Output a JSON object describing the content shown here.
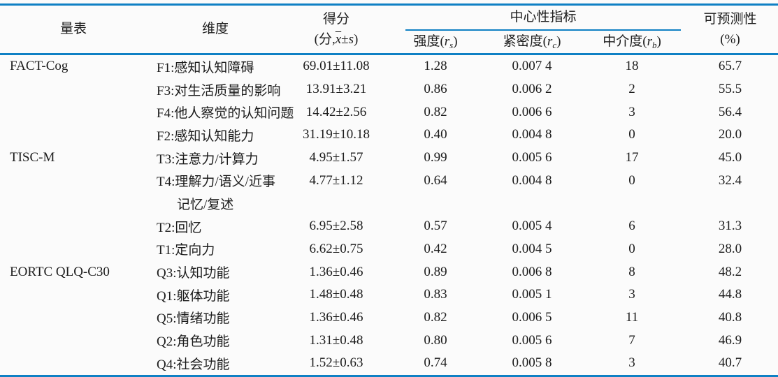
{
  "colors": {
    "accent": "#0f80c4",
    "ink": "#1c1c1c",
    "background": "#fbfbfb"
  },
  "table": {
    "header": {
      "scale": "量表",
      "dimension": "维度",
      "score": {
        "line1": "得分",
        "open": "(分,",
        "xbar": "x",
        "pm": "±",
        "s": "s",
        "close": ")"
      },
      "centrality": "中心性指标",
      "strength": {
        "label": "强度(",
        "sym": "r",
        "sub": "s",
        "close": ")"
      },
      "closeness": {
        "label": "紧密度(",
        "sym": "r",
        "sub": "c",
        "close": ")"
      },
      "betweenness": {
        "label": "中介度(",
        "sym": "r",
        "sub": "b",
        "close": ")"
      },
      "predictability": {
        "line1": "可预测性",
        "line2": "(%)"
      }
    },
    "rows": [
      {
        "scale": "FACT-Cog",
        "dim": "F1:感知认知障碍",
        "score": "69.01±11.08",
        "rs": "1.28",
        "rc": "0.007 4",
        "rb": "18",
        "pred": "65.7"
      },
      {
        "scale": "",
        "dim": "F3:对生活质量的影响",
        "score": "13.91±3.21",
        "rs": "0.86",
        "rc": "0.006 2",
        "rb": "2",
        "pred": "55.5"
      },
      {
        "scale": "",
        "dim": "F4:他人察觉的认知问题",
        "score": "14.42±2.56",
        "rs": "0.82",
        "rc": "0.006 6",
        "rb": "3",
        "pred": "56.4"
      },
      {
        "scale": "",
        "dim": "F2:感知认知能力",
        "score": "31.19±10.18",
        "rs": "0.40",
        "rc": "0.004 8",
        "rb": "0",
        "pred": "20.0"
      },
      {
        "scale": "TISC-M",
        "dim": "T3:注意力/计算力",
        "score": "4.95±1.57",
        "rs": "0.99",
        "rc": "0.005 6",
        "rb": "17",
        "pred": "45.0"
      },
      {
        "scale": "",
        "dim": "T4:理解力/语义/近事",
        "score": "4.77±1.12",
        "rs": "0.64",
        "rc": "0.004 8",
        "rb": "0",
        "pred": "32.4"
      },
      {
        "scale": "",
        "dim": "记忆/复述",
        "indent": true,
        "score": "",
        "rs": "",
        "rc": "",
        "rb": "",
        "pred": ""
      },
      {
        "scale": "",
        "dim": "T2:回忆",
        "score": "6.95±2.58",
        "rs": "0.57",
        "rc": "0.005 4",
        "rb": "6",
        "pred": "31.3"
      },
      {
        "scale": "",
        "dim": "T1:定向力",
        "score": "6.62±0.75",
        "rs": "0.42",
        "rc": "0.004 5",
        "rb": "0",
        "pred": "28.0"
      },
      {
        "scale": "EORTC QLQ-C30",
        "dim": "Q3:认知功能",
        "score": "1.36±0.46",
        "rs": "0.89",
        "rc": "0.006 8",
        "rb": "8",
        "pred": "48.2"
      },
      {
        "scale": "",
        "dim": "Q1:躯体功能",
        "score": "1.48±0.48",
        "rs": "0.83",
        "rc": "0.005 1",
        "rb": "3",
        "pred": "44.8"
      },
      {
        "scale": "",
        "dim": "Q5:情绪功能",
        "score": "1.36±0.46",
        "rs": "0.82",
        "rc": "0.006 5",
        "rb": "11",
        "pred": "40.8"
      },
      {
        "scale": "",
        "dim": "Q2:角色功能",
        "score": "1.31±0.48",
        "rs": "0.80",
        "rc": "0.005 6",
        "rb": "7",
        "pred": "46.9"
      },
      {
        "scale": "",
        "dim": "Q4:社会功能",
        "score": "1.52±0.63",
        "rs": "0.74",
        "rc": "0.005 8",
        "rb": "3",
        "pred": "40.7"
      }
    ]
  }
}
